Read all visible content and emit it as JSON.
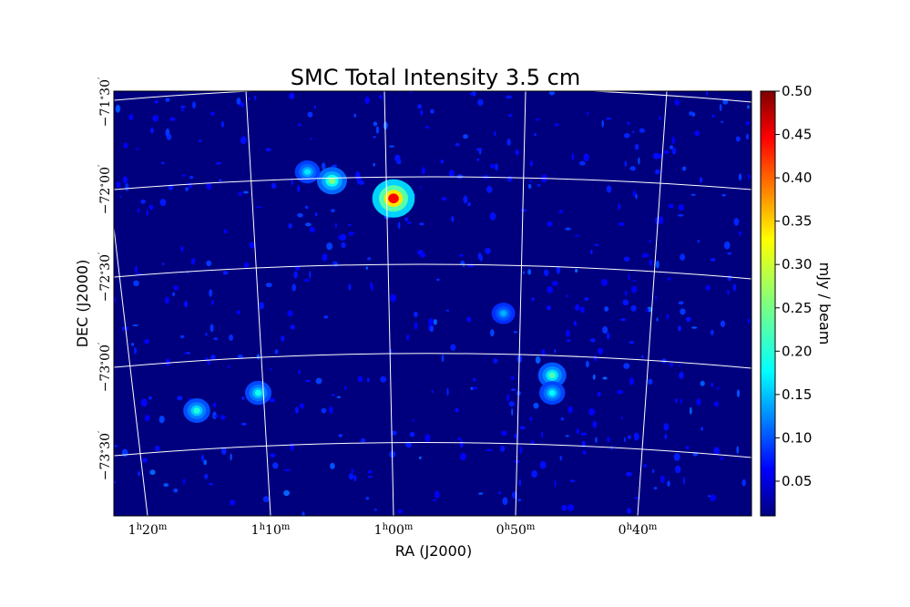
{
  "chart_data": {
    "type": "heatmap",
    "title": "SMC Total Intensity 3.5 cm",
    "xlabel": "RA (J2000)",
    "ylabel": "DEC (J2000)",
    "colorbar": {
      "label": "mJy / beam",
      "range": [
        0.01,
        0.5
      ],
      "ticks": [
        "0.05",
        "0.10",
        "0.15",
        "0.20",
        "0.25",
        "0.30",
        "0.35",
        "0.40",
        "0.45",
        "0.50"
      ],
      "colormap": "jet"
    },
    "ra_ticks": [
      "1h20m",
      "1h10m",
      "1h00m",
      "0h50m",
      "0h40m"
    ],
    "dec_ticks": [
      "-71°30′",
      "-72°00′",
      "-72°30′",
      "-73°00′",
      "-73°30′"
    ],
    "grid": true,
    "background_color": "#00007f",
    "sources": [
      {
        "ra_label": "1h00m",
        "dec": -72.05,
        "intensity": 0.43
      },
      {
        "ra_label": "1h05m",
        "dec": -71.95,
        "intensity": 0.22
      },
      {
        "ra_label": "1h07m",
        "dec": -71.9,
        "intensity": 0.14
      },
      {
        "ra_label": "0h47m",
        "dec": -73.05,
        "intensity": 0.19
      },
      {
        "ra_label": "0h47m",
        "dec": -73.15,
        "intensity": 0.15
      },
      {
        "ra_label": "1h16m",
        "dec": -73.25,
        "intensity": 0.17
      },
      {
        "ra_label": "1h11m",
        "dec": -73.15,
        "intensity": 0.16
      },
      {
        "ra_label": "0h51m",
        "dec": -72.7,
        "intensity": 0.11
      }
    ]
  }
}
